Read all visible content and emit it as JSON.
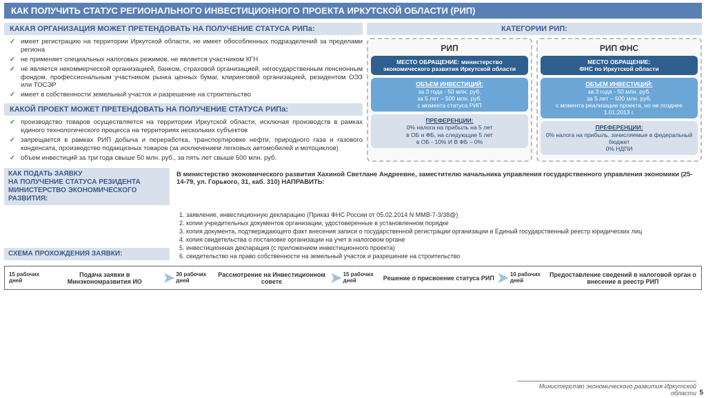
{
  "title_part1": "КАК ПОЛУЧИТЬ СТАТУС ",
  "title_part2": "РЕГИОНАЛЬНОГО ИНВЕСТИЦИОННОГО ПРОЕКТА ИРКУТСКОЙ ОБЛАСТИ (РИП)",
  "hdr_org": "КАКАЯ ОРГАНИЗАЦИЯ МОЖЕТ ПРЕТЕНДОВАТЬ НА ПОЛУЧЕНИЕ СТАТУСА РИПа:",
  "hdr_cat": "КАТЕГОРИИ РИП:",
  "hdr_proj": "КАКОЙ ПРОЕКТ МОЖЕТ ПРЕТЕНДОВАТЬ НА ПОЛУЧЕНИЕ СТАТУСА РИПа:",
  "org_items": [
    "имеет регистрацию на территории Иркутской области, не имеет обособленных подразделений за пределами региона",
    "не применяет специальных налоговых режимов, не является участником КГН",
    "не является некоммерческой организацией, банком, страховой организацией, негосударственным пенсионным фондом, профессиональным участником рынка ценных бумаг, клиринговой организацией, резидентом ОЭЗ или ТОСЭР",
    "имеет в собственности земельный участок и разрешение на строительство"
  ],
  "proj_items": [
    "производство товаров осуществляется на территории Иркутской области, исключая производств в рамках единого технологического процесса на территориях нескольких субъектов",
    "запрещается в рамках РИП добыча и переработка, транспортировке нефти, природного газа и газового конденсата, производство подакцизных товаров (за исключением легковых автомобилей и мотоциклов)",
    "объем инвестиций за три года свыше 50 млн. руб., за пять лет свыше 500 млн. руб."
  ],
  "card1": {
    "title": "РИП",
    "place_lbl": "МЕСТО ОБРАЩЕНИЕ: министерство экономического развития Иркутской области",
    "vol_lbl": "ОБЪЕМ ИНВЕСТИЦИЙ:",
    "vol_txt": "за 3 года - 50 млн. руб.\nза 5 лет – 500 млн. руб.\nс момента статуса РИП",
    "pref_lbl": "ПРЕФЕРЕНЦИИ:",
    "pref_txt": "0% налога на прибыль на 5 лет\nв ОБ и ФБ, на следующие 5 лет\nв ОБ - 10% И В ФБ – 0%"
  },
  "card2": {
    "title": "РИП ФНС",
    "place_lbl": "МЕСТО ОБРАЩЕНИЕ:\nФНС по Иркутской области",
    "vol_lbl": "ОБЪЕМ ИНВЕСТИЦИЙ:",
    "vol_txt": "за 3 года - 50 млн. руб.\nза 5 лет – 500 млн. руб.\nс момента реализации проекта, но не позднее 1.01.2013 г.",
    "pref_lbl": "ПРЕФЕРЕНЦИИ:",
    "pref_txt": "0% налога на прибыль, зачисляемые в федеральный бюджет\n0% НДПИ"
  },
  "addr": "В министерство экономического развития Хахиной Светлане Андреевне, заместителю начальника управления государственного управления экономики  (25-14-79, ул. Горького, 31, каб. 310) НАПРАВИТЬ:",
  "hdr_apply": "КАК ПОДАТЬ ЗАЯВКУ\n НА ПОЛУЧЕНИЕ СТАТУСА РЕЗИДЕНТА МИНИСТЕРСТВО ЭКОНОМИЧЕСКОГО РАЗВИТИЯ:",
  "docs_note": "(Приказ ФНС России от 05.02.2014 N ММВ-7-3/38@)",
  "docs": [
    "заявление, инвестиционную декларацию ",
    "копии учредительных документов организации, удостоверенные в установленном порядке",
    "копия документа, подтверждающего факт внесения записи о государственной регистрации организации в Единый государственный реестр юридических лиц",
    "копия свидетельства о постановке организации на учет в налоговом органе",
    "инвестиционная декларация (с приложением инвестиционного проекта)",
    "свидетельство на право собственности на земельный участок и разрешение на строительство"
  ],
  "hdr_flow": "СХЕМА ПРОХОЖДЕНИЯ ЗАЯВКИ:",
  "flow": {
    "d1": "15 рабочих дней",
    "s1": "Подача заявки в Минэкономразвития ИО",
    "d2": "30 рабочих дней",
    "s2": "Рассмотрение на Инвестиционном совете",
    "d3": "15 рабочих дней",
    "s3": "Решение о присвоение статуса РИП",
    "d4": "10 рабочих дней",
    "s4": "Предоставление сведений в налоговой орган о внесение в реестр РИП"
  },
  "footer": "Министерство экономического развития Иркутской области",
  "page": "5"
}
